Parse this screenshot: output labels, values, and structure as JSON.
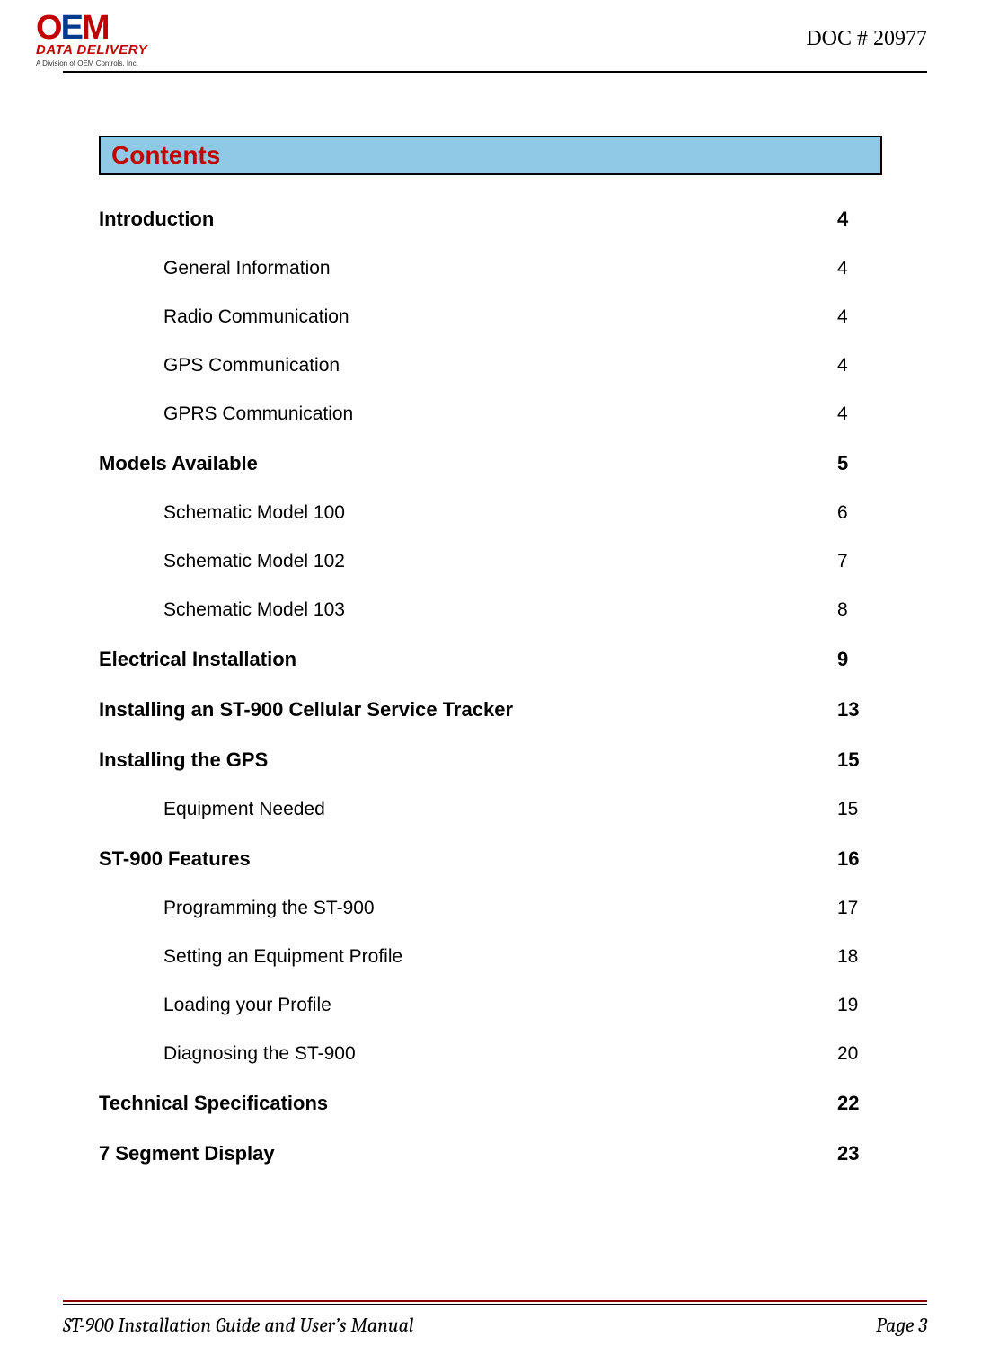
{
  "header": {
    "logo_main_o": "O",
    "logo_main_e": "E",
    "logo_main_m": "M",
    "logo_sub": "DATA DELIVERY",
    "logo_tag": "A Division of OEM Controls, Inc.",
    "doc_number": "DOC # 20977"
  },
  "contents_title": "Contents",
  "toc": [
    {
      "label": "Introduction",
      "page": "4",
      "level": 1
    },
    {
      "label": "General Information",
      "page": "4",
      "level": 2
    },
    {
      "label": "Radio Communication",
      "page": "4",
      "level": 2
    },
    {
      "label": "GPS Communication",
      "page": "4",
      "level": 2
    },
    {
      "label": "GPRS Communication",
      "page": "4",
      "level": 2
    },
    {
      "label": "Models Available",
      "page": "5",
      "level": 1
    },
    {
      "label": "Schematic Model 100",
      "page": "6",
      "level": 2
    },
    {
      "label": "Schematic Model 102",
      "page": "7",
      "level": 2
    },
    {
      "label": "Schematic Model 103",
      "page": "8",
      "level": 2
    },
    {
      "label": "Electrical Installation",
      "page": "9",
      "level": 1
    },
    {
      "label": "Installing an ST-900 Cellular Service Tracker",
      "page": "13",
      "level": 1
    },
    {
      "label": "Installing the GPS",
      "page": "15",
      "level": 1
    },
    {
      "label": "Equipment Needed",
      "page": "15",
      "level": 2
    },
    {
      "label": "ST-900 Features",
      "page": "16",
      "level": 1
    },
    {
      "label": "Programming the ST-900",
      "page": "17",
      "level": 2
    },
    {
      "label": "Setting an Equipment Profile",
      "page": "18",
      "level": 2
    },
    {
      "label": "Loading your Profile",
      "page": "19",
      "level": 2
    },
    {
      "label": "Diagnosing the ST-900",
      "page": "20",
      "level": 2
    },
    {
      "label": "Technical Specifications",
      "page": "22",
      "level": 1
    },
    {
      "label": "7 Segment Display",
      "page": "23",
      "level": 1
    }
  ],
  "footer": {
    "title": "ST-900 Installation Guide and User’s Manual",
    "page": "Page 3"
  },
  "colors": {
    "banner_bg": "#8ecae6",
    "banner_text": "#c10000",
    "footer_rule": "#8b0000"
  }
}
